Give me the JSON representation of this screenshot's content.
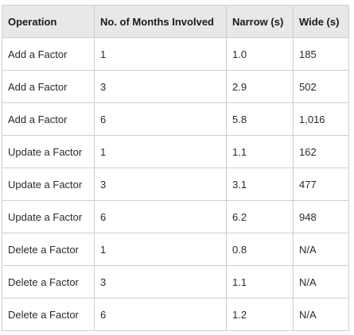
{
  "table": {
    "headers": [
      "Operation",
      "No. of Months Involved",
      "Narrow (s)",
      "Wide (s)"
    ],
    "rows": [
      [
        "Add a Factor",
        "1",
        "1.0",
        "185"
      ],
      [
        "Add a Factor",
        "3",
        "2.9",
        "502"
      ],
      [
        "Add a Factor",
        "6",
        "5.8",
        "1,016"
      ],
      [
        "Update a Factor",
        "1",
        "1.1",
        "162"
      ],
      [
        "Update a Factor",
        "3",
        "3.1",
        "477"
      ],
      [
        "Update a Factor",
        "6",
        "6.2",
        "948"
      ],
      [
        "Delete a Factor",
        "1",
        "0.8",
        "N/A"
      ],
      [
        "Delete a Factor",
        "3",
        "1.1",
        "N/A"
      ],
      [
        "Delete a Factor",
        "6",
        "1.2",
        "N/A"
      ]
    ]
  }
}
